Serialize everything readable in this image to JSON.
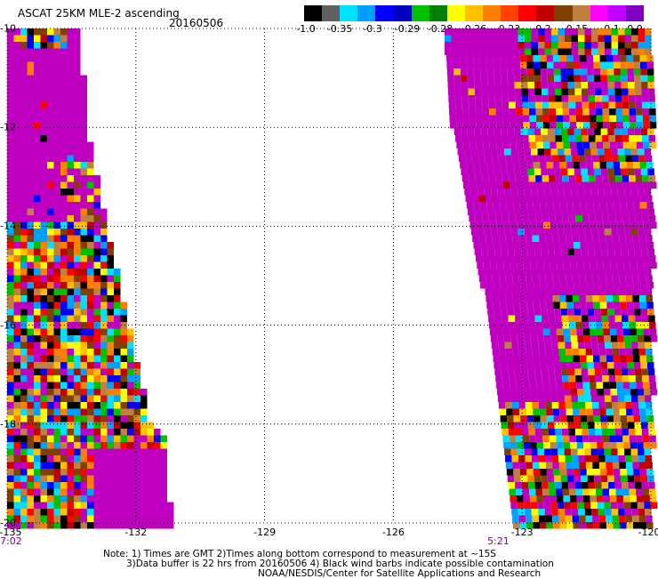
{
  "title": "ASCAT 25KM MLE-2 ascending",
  "date": "20160506",
  "legend": {
    "colors": [
      "#000000",
      "#606060",
      "#00e0ff",
      "#00a0ff",
      "#0000ff",
      "#0000c0",
      "#00c000",
      "#008000",
      "#ffff00",
      "#ffc000",
      "#ff8000",
      "#ff4000",
      "#ff0000",
      "#c00000",
      "#804000",
      "#c08040",
      "#ff00ff",
      "#c000ff",
      "#8000c0"
    ],
    "tick_labels": [
      "-1.0",
      "-0.35",
      "-0.3",
      "-0.29",
      "-0.28",
      "-0.26",
      "-0.23",
      "-0.2",
      "-0.15",
      "-0.1",
      "0.0"
    ]
  },
  "map": {
    "lon_labels": [
      "-135",
      "-132",
      "-129",
      "-126",
      "-123",
      "-120"
    ],
    "lat_labels": [
      "-10",
      "-12",
      "-14",
      "-16",
      "-18",
      "-20"
    ],
    "lon_range": [
      -135,
      -120
    ],
    "lat_range": [
      -20,
      -10
    ],
    "time_labels": [
      "7:02",
      "5:21"
    ],
    "palette_purple": "#c000c0",
    "palette_cells": [
      "#ff0000",
      "#ff8000",
      "#ffff00",
      "#ffc000",
      "#00c000",
      "#0000ff",
      "#00a0ff",
      "#00e0ff",
      "#804000",
      "#c00000",
      "#c08040",
      "#000000"
    ]
  },
  "notes": {
    "line1": "Note: 1) Times are GMT 2)Times along bottom correspond to measurement at ~15S",
    "line2": "3)Data buffer is 22 hrs from 20160506 4) Black wind barbs indicate possible contamination",
    "line3": "NOAA/NESDIS/Center for Satellite Applications and Research"
  }
}
